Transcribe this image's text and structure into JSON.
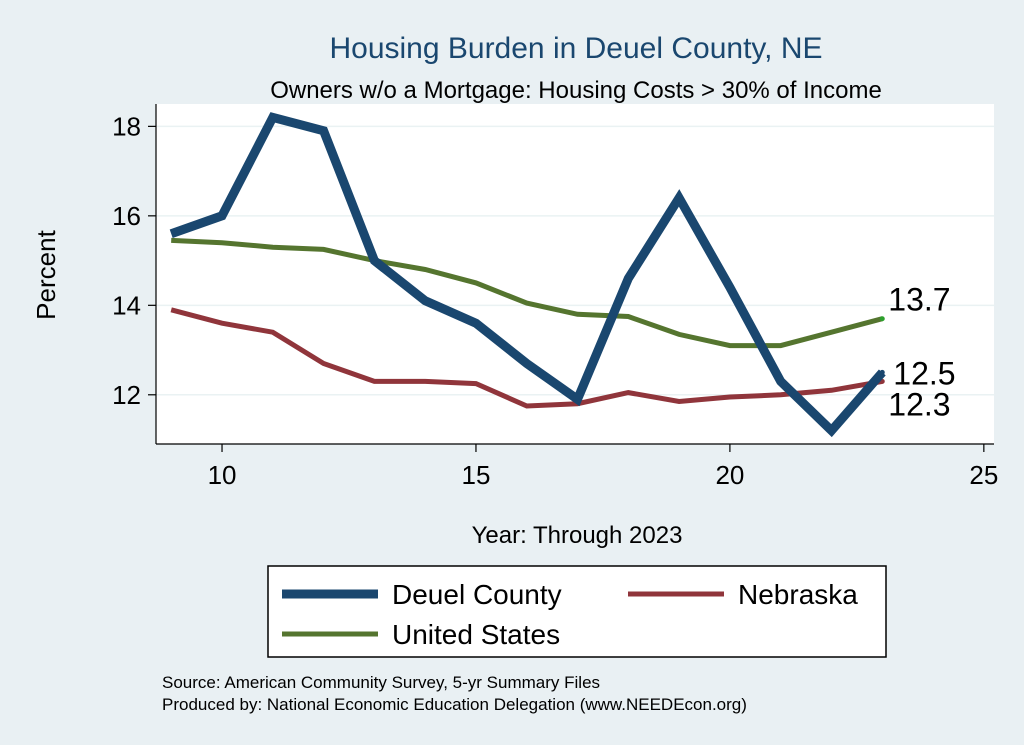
{
  "chart_data": {
    "type": "line",
    "title": "Housing Burden in Deuel County, NE",
    "subtitle": "Owners w/o a Mortgage: Housing Costs > 30% of Income",
    "xlabel": "Year: Through 2023",
    "ylabel": "Percent",
    "xlim": [
      8.7,
      25.2
    ],
    "ylim": [
      10.9,
      18.5
    ],
    "xticks": [
      10,
      15,
      20,
      25
    ],
    "yticks": [
      12,
      14,
      16,
      18
    ],
    "grid": true,
    "legend_position": "bottom",
    "x": [
      9,
      10,
      11,
      12,
      13,
      14,
      15,
      16,
      17,
      18,
      19,
      20,
      21,
      22,
      23
    ],
    "series": [
      {
        "name": "Deuel County",
        "color": "#1a476f",
        "values": [
          15.6,
          16.0,
          18.2,
          17.9,
          15.0,
          14.1,
          13.6,
          12.7,
          11.9,
          14.6,
          16.4,
          14.4,
          12.3,
          11.2,
          12.5
        ],
        "end_label": "12.5"
      },
      {
        "name": "Nebraska",
        "color": "#90353b",
        "values": [
          13.9,
          13.6,
          13.4,
          12.7,
          12.3,
          12.3,
          12.25,
          11.75,
          11.8,
          12.05,
          11.85,
          11.95,
          12.0,
          12.1,
          12.3
        ],
        "end_label": "12.3"
      },
      {
        "name": "United States",
        "color": "#55752f",
        "values": [
          15.45,
          15.4,
          15.3,
          15.25,
          15.0,
          14.8,
          14.5,
          14.05,
          13.8,
          13.75,
          13.35,
          13.1,
          13.1,
          13.4,
          13.7
        ],
        "end_label": "13.7"
      }
    ]
  },
  "footer": {
    "source": "Source: American Community Survey, 5-yr Summary Files",
    "producer": "Produced by: National Economic Education Delegation (www.NEEDEcon.org)"
  }
}
